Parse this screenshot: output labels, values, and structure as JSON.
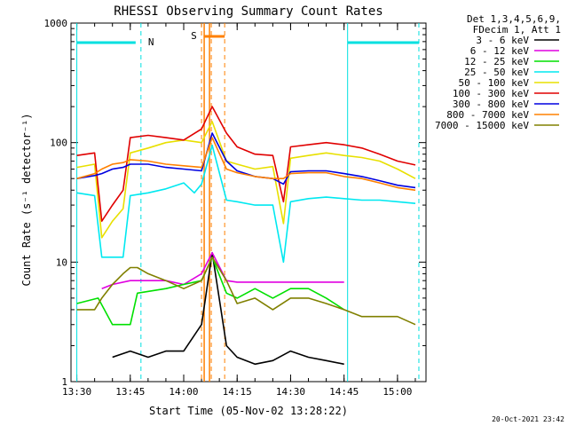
{
  "chart_data": {
    "type": "line",
    "title": "RHESSI Observing Summary Count Rates",
    "xlabel": "Start Time (05-Nov-02 13:28:22)",
    "ylabel": "Count Rate (s⁻¹ detector⁻¹)",
    "y_scale": "log",
    "ylim": [
      1,
      1000
    ],
    "xlim": [
      "13:28:22",
      "15:08:00"
    ],
    "x_ticks": [
      "13:30",
      "13:45",
      "14:00",
      "14:15",
      "14:30",
      "14:45",
      "15:00"
    ],
    "y_ticks": [
      "1",
      "10",
      "100",
      "1000"
    ],
    "timestamp": "20-Oct-2021 23:42",
    "legend": {
      "position": "outside-right",
      "header": [
        "Det 1,3,4,5,6,9,",
        "FDecim 1, Att 1"
      ]
    },
    "markers": [
      {
        "label": "N",
        "kind": "night",
        "color": "#00e0e0"
      },
      {
        "label": "S",
        "kind": "saa",
        "color": "#ff8000"
      }
    ],
    "series": [
      {
        "name": "3 - 6 keV",
        "color": "#000000",
        "x": [
          "13:40",
          "13:45",
          "13:50",
          "13:55",
          "14:00",
          "14:05",
          "14:08",
          "14:12",
          "14:15",
          "14:20",
          "14:25",
          "14:30",
          "14:35",
          "14:40",
          "14:45"
        ],
        "y": [
          1.6,
          1.8,
          1.6,
          1.8,
          1.8,
          3.0,
          12.0,
          2.0,
          1.6,
          1.4,
          1.5,
          1.8,
          1.6,
          1.5,
          1.4
        ]
      },
      {
        "name": "6 - 12 keV",
        "color": "#e000e0",
        "x": [
          "13:37",
          "13:40",
          "13:45",
          "13:47",
          "13:55",
          "14:00",
          "14:05",
          "14:08",
          "14:12",
          "14:15",
          "14:20",
          "14:25",
          "14:30",
          "14:35",
          "14:40",
          "14:45"
        ],
        "y": [
          6.0,
          6.5,
          7.0,
          7.0,
          7.0,
          6.5,
          8.0,
          12.0,
          7.0,
          6.8,
          6.8,
          6.8,
          6.8,
          6.8,
          6.8,
          6.8
        ]
      },
      {
        "name": "12 - 25 keV",
        "color": "#00e000",
        "x": [
          "13:30",
          "13:36",
          "13:40",
          "13:45",
          "13:47",
          "13:55",
          "14:00",
          "14:05",
          "14:08",
          "14:12",
          "14:15",
          "14:20",
          "14:25",
          "14:30",
          "14:35",
          "14:40",
          "14:45"
        ],
        "y": [
          4.5,
          5.0,
          3.0,
          3.0,
          5.5,
          6.0,
          6.5,
          7.0,
          11.0,
          5.5,
          5.0,
          6.0,
          5.0,
          6.0,
          6.0,
          5.0,
          4.0
        ]
      },
      {
        "name": "25 - 50 keV",
        "color": "#00e8f0",
        "x": [
          "13:30",
          "13:35",
          "13:37",
          "13:40",
          "13:43",
          "13:45",
          "13:50",
          "13:55",
          "14:00",
          "14:03",
          "14:05",
          "14:08",
          "14:12",
          "14:15",
          "14:20",
          "14:25",
          "14:28",
          "14:30",
          "14:35",
          "14:40",
          "14:45",
          "14:50",
          "14:55",
          "15:00",
          "15:05"
        ],
        "y": [
          38,
          36,
          11,
          11,
          11,
          36,
          38,
          41,
          46,
          38,
          45,
          95,
          33,
          32,
          30,
          30,
          10,
          32,
          34,
          35,
          34,
          33,
          33,
          32,
          31
        ]
      },
      {
        "name": "50 - 100 keV",
        "color": "#e8e000",
        "x": [
          "13:30",
          "13:35",
          "13:37",
          "13:40",
          "13:43",
          "13:45",
          "13:50",
          "13:55",
          "14:00",
          "14:05",
          "14:08",
          "14:12",
          "14:15",
          "14:20",
          "14:25",
          "14:28",
          "14:30",
          "14:35",
          "14:40",
          "14:45",
          "14:50",
          "14:55",
          "15:00",
          "15:05"
        ],
        "y": [
          62,
          66,
          16,
          22,
          28,
          82,
          90,
          100,
          105,
          100,
          150,
          70,
          66,
          60,
          63,
          21,
          74,
          78,
          82,
          78,
          75,
          70,
          60,
          50
        ]
      },
      {
        "name": "100 - 300 keV",
        "color": "#e00000",
        "x": [
          "13:30",
          "13:35",
          "13:37",
          "13:40",
          "13:43",
          "13:45",
          "13:50",
          "13:55",
          "14:00",
          "14:05",
          "14:08",
          "14:12",
          "14:15",
          "14:20",
          "14:25",
          "14:28",
          "14:30",
          "14:35",
          "14:40",
          "14:45",
          "14:50",
          "14:55",
          "15:00",
          "15:05"
        ],
        "y": [
          78,
          82,
          22,
          30,
          40,
          110,
          115,
          110,
          105,
          130,
          200,
          120,
          92,
          80,
          78,
          32,
          92,
          96,
          100,
          96,
          90,
          80,
          70,
          65
        ]
      },
      {
        "name": "300 - 800 keV",
        "color": "#0000e0",
        "x": [
          "13:30",
          "13:35",
          "13:37",
          "13:40",
          "13:43",
          "13:45",
          "13:50",
          "13:55",
          "14:00",
          "14:05",
          "14:08",
          "14:12",
          "14:15",
          "14:20",
          "14:25",
          "14:28",
          "14:30",
          "14:35",
          "14:40",
          "14:45",
          "14:50",
          "14:55",
          "15:00",
          "15:05"
        ],
        "y": [
          50,
          53,
          55,
          60,
          62,
          66,
          66,
          62,
          60,
          58,
          120,
          70,
          58,
          52,
          50,
          45,
          57,
          58,
          58,
          55,
          52,
          48,
          44,
          42
        ]
      },
      {
        "name": "800 - 7000 keV",
        "color": "#ff8000",
        "x": [
          "13:30",
          "13:35",
          "13:37",
          "13:40",
          "13:43",
          "13:45",
          "13:50",
          "13:55",
          "14:00",
          "14:05",
          "14:08",
          "14:12",
          "14:15",
          "14:20",
          "14:25",
          "14:28",
          "14:30",
          "14:35",
          "14:40",
          "14:45",
          "14:50",
          "14:55",
          "15:00",
          "15:05"
        ],
        "y": [
          50,
          55,
          60,
          66,
          68,
          72,
          70,
          66,
          64,
          62,
          110,
          60,
          56,
          52,
          50,
          50,
          55,
          56,
          56,
          52,
          50,
          46,
          42,
          40
        ]
      },
      {
        "name": "7000 - 15000 keV",
        "color": "#808000",
        "x": [
          "13:30",
          "13:35",
          "13:37",
          "13:40",
          "13:43",
          "13:45",
          "13:47",
          "13:50",
          "13:55",
          "14:00",
          "14:05",
          "14:08",
          "14:12",
          "14:15",
          "14:20",
          "14:25",
          "14:30",
          "14:35",
          "14:40",
          "14:45",
          "14:50",
          "14:55",
          "15:00",
          "15:05"
        ],
        "y": [
          4.0,
          4.0,
          5.0,
          6.5,
          8.0,
          9.0,
          9.0,
          8.0,
          7.0,
          6.0,
          7.0,
          11.0,
          7.0,
          4.5,
          5.0,
          4.0,
          5.0,
          5.0,
          4.5,
          4.0,
          3.5,
          3.5,
          3.5,
          3.0
        ]
      }
    ]
  }
}
